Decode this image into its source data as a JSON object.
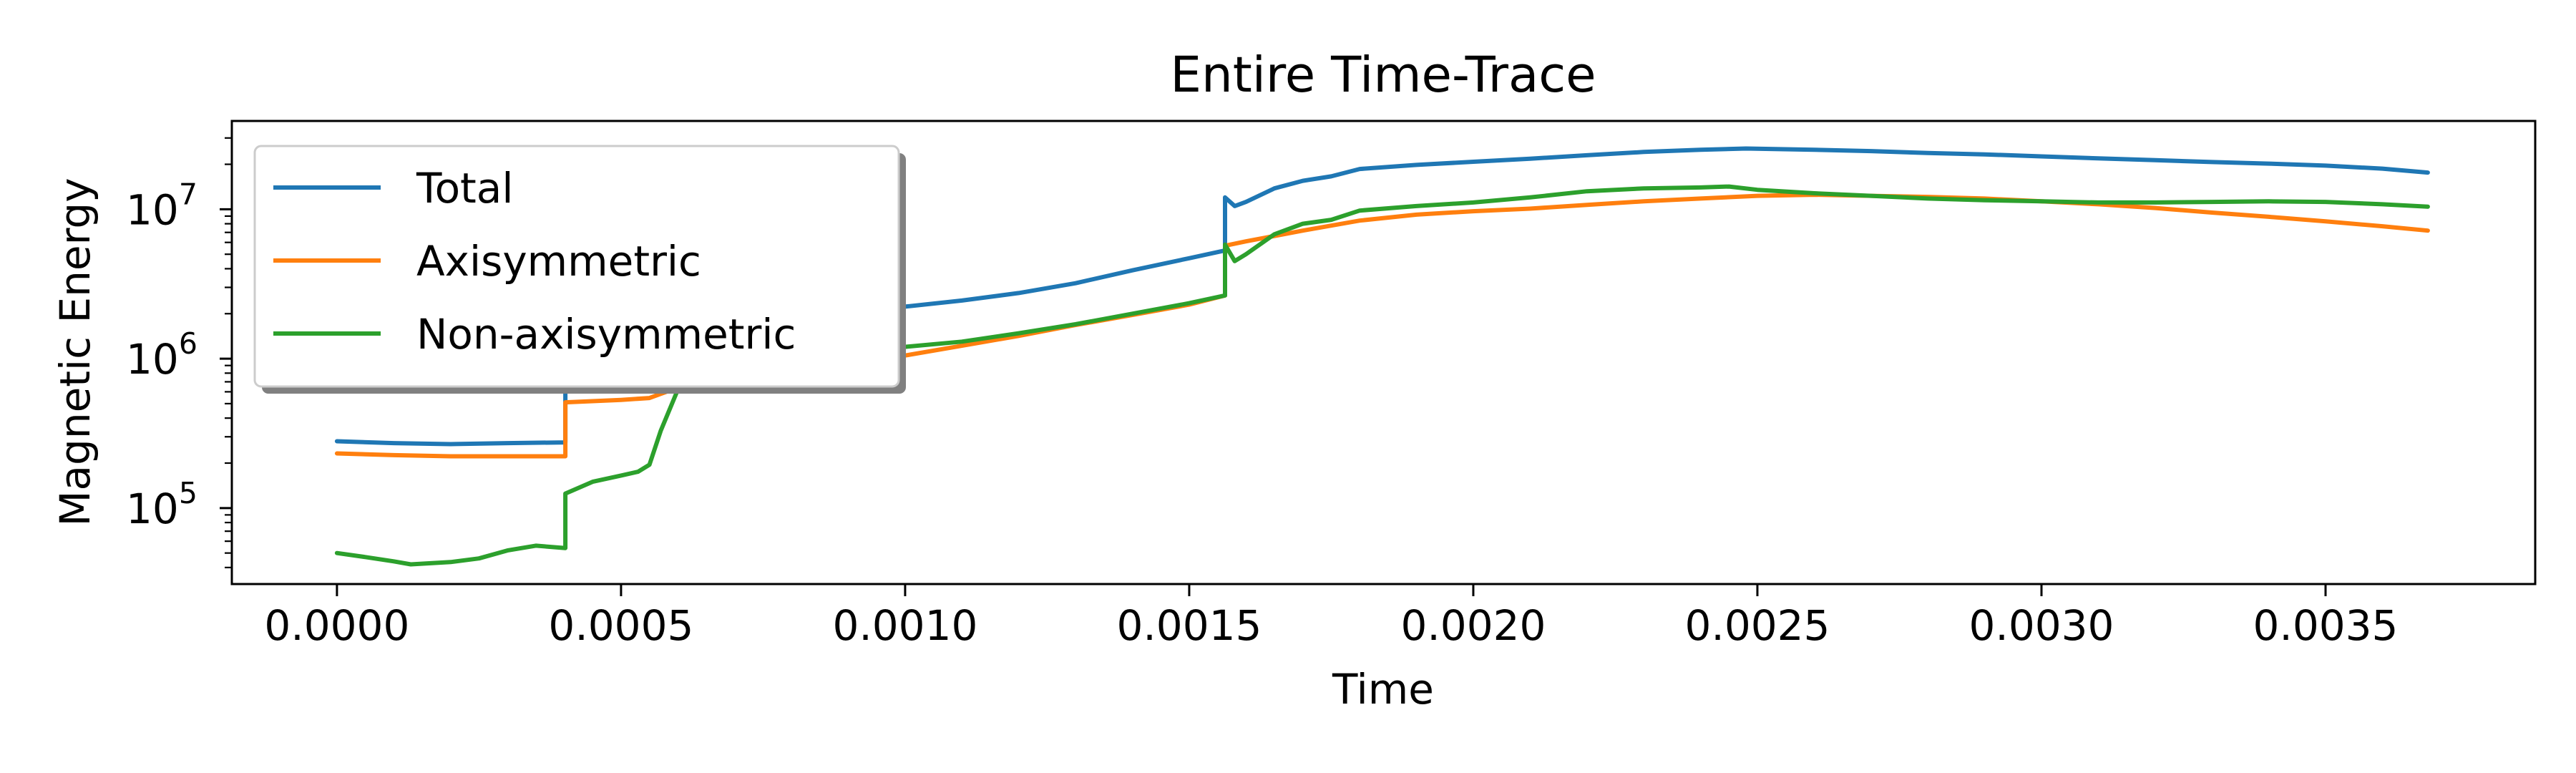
{
  "chart_data": {
    "type": "line",
    "title": "Entire Time-Trace",
    "xlabel": "Time",
    "ylabel": "Magnetic Energy",
    "x_ticks": [
      "0.0000",
      "0.0005",
      "0.0010",
      "0.0015",
      "0.0020",
      "0.0025",
      "0.0030",
      "0.0035"
    ],
    "y_ticks": [
      {
        "base": "10",
        "exp": "5"
      },
      {
        "base": "10",
        "exp": "6"
      },
      {
        "base": "10",
        "exp": "7"
      }
    ],
    "xlim": [
      -0.000185,
      0.003869
    ],
    "ylim": [
      31000,
      39000000
    ],
    "yscale": "log",
    "grid": false,
    "legend_position": "upper left",
    "series": [
      {
        "name": "Total",
        "color": "#1f77b4",
        "points": [
          [
            0.0,
            280000
          ],
          [
            0.0001,
            272000
          ],
          [
            0.0002,
            268000
          ],
          [
            0.0003,
            272000
          ],
          [
            0.000402,
            275000
          ],
          [
            0.000402,
            640000
          ],
          [
            0.0006,
            700000
          ],
          [
            0.0008,
            1000000
          ],
          [
            0.0009,
            1700000
          ],
          [
            0.001,
            2230000
          ],
          [
            0.0011,
            2450000
          ],
          [
            0.0012,
            2750000
          ],
          [
            0.0013,
            3200000
          ],
          [
            0.0014,
            3900000
          ],
          [
            0.0015,
            4700000
          ],
          [
            0.001563,
            5300000
          ],
          [
            0.001563,
            12000000
          ],
          [
            0.00158,
            10500000
          ],
          [
            0.0016,
            11200000
          ],
          [
            0.00165,
            13800000
          ],
          [
            0.0017,
            15500000
          ],
          [
            0.00175,
            16600000
          ],
          [
            0.0018,
            18600000
          ],
          [
            0.0019,
            19800000
          ],
          [
            0.002,
            20800000
          ],
          [
            0.0021,
            21800000
          ],
          [
            0.0022,
            23000000
          ],
          [
            0.0023,
            24200000
          ],
          [
            0.0024,
            25000000
          ],
          [
            0.00248,
            25500000
          ],
          [
            0.0026,
            25000000
          ],
          [
            0.0027,
            24500000
          ],
          [
            0.0028,
            23800000
          ],
          [
            0.0029,
            23300000
          ],
          [
            0.003,
            22600000
          ],
          [
            0.0031,
            21900000
          ],
          [
            0.0032,
            21300000
          ],
          [
            0.0033,
            20700000
          ],
          [
            0.0034,
            20200000
          ],
          [
            0.0035,
            19600000
          ],
          [
            0.0036,
            18700000
          ],
          [
            0.00368,
            17600000
          ]
        ]
      },
      {
        "name": "Axisymmetric",
        "color": "#ff7f0e",
        "points": [
          [
            0.0,
            232000
          ],
          [
            0.0001,
            226000
          ],
          [
            0.0002,
            222000
          ],
          [
            0.0003,
            222000
          ],
          [
            0.000402,
            222000
          ],
          [
            0.000402,
            510000
          ],
          [
            0.0005,
            530000
          ],
          [
            0.00055,
            545000
          ],
          [
            0.0006,
            640000
          ],
          [
            0.0007,
            690000
          ],
          [
            0.0008,
            780000
          ],
          [
            0.0009,
            900000
          ],
          [
            0.001,
            1050000
          ],
          [
            0.0011,
            1220000
          ],
          [
            0.0012,
            1420000
          ],
          [
            0.0013,
            1680000
          ],
          [
            0.0014,
            1960000
          ],
          [
            0.0015,
            2300000
          ],
          [
            0.001563,
            2650000
          ],
          [
            0.001563,
            5700000
          ],
          [
            0.0016,
            6100000
          ],
          [
            0.0017,
            7200000
          ],
          [
            0.0018,
            8400000
          ],
          [
            0.0019,
            9200000
          ],
          [
            0.002,
            9700000
          ],
          [
            0.0021,
            10100000
          ],
          [
            0.0022,
            10700000
          ],
          [
            0.0023,
            11300000
          ],
          [
            0.0024,
            11800000
          ],
          [
            0.0025,
            12300000
          ],
          [
            0.0026,
            12500000
          ],
          [
            0.0027,
            12300000
          ],
          [
            0.0028,
            12100000
          ],
          [
            0.0029,
            11800000
          ],
          [
            0.003,
            11300000
          ],
          [
            0.0031,
            10800000
          ],
          [
            0.0032,
            10200000
          ],
          [
            0.0033,
            9500000
          ],
          [
            0.0034,
            8900000
          ],
          [
            0.0035,
            8300000
          ],
          [
            0.0036,
            7700000
          ],
          [
            0.00368,
            7200000
          ]
        ]
      },
      {
        "name": "Non-axisymmetric",
        "color": "#2ca02c",
        "points": [
          [
            0.0,
            50000
          ],
          [
            5e-05,
            47000
          ],
          [
            0.0001,
            44000
          ],
          [
            0.00013,
            42000
          ],
          [
            0.0002,
            43500
          ],
          [
            0.00025,
            46000
          ],
          [
            0.0003,
            52000
          ],
          [
            0.00035,
            56000
          ],
          [
            0.000402,
            54000
          ],
          [
            0.000402,
            125000
          ],
          [
            0.00045,
            150000
          ],
          [
            0.0005,
            165000
          ],
          [
            0.00053,
            175000
          ],
          [
            0.00055,
            195000
          ],
          [
            0.00057,
            330000
          ],
          [
            0.0006,
            620000
          ],
          [
            0.00065,
            700000
          ],
          [
            0.0007,
            760000
          ],
          [
            0.0008,
            880000
          ],
          [
            0.0009,
            1000000
          ],
          [
            0.001,
            1200000
          ],
          [
            0.0011,
            1300000
          ],
          [
            0.0012,
            1480000
          ],
          [
            0.0013,
            1700000
          ],
          [
            0.0014,
            2000000
          ],
          [
            0.0015,
            2350000
          ],
          [
            0.001563,
            2650000
          ],
          [
            0.001563,
            5800000
          ],
          [
            0.00158,
            4500000
          ],
          [
            0.0016,
            5000000
          ],
          [
            0.00165,
            6800000
          ],
          [
            0.0017,
            8000000
          ],
          [
            0.00175,
            8500000
          ],
          [
            0.0018,
            9800000
          ],
          [
            0.0019,
            10500000
          ],
          [
            0.002,
            11100000
          ],
          [
            0.0021,
            12000000
          ],
          [
            0.0022,
            13200000
          ],
          [
            0.0023,
            13800000
          ],
          [
            0.0024,
            14000000
          ],
          [
            0.00245,
            14200000
          ],
          [
            0.0025,
            13500000
          ],
          [
            0.0026,
            12800000
          ],
          [
            0.0027,
            12300000
          ],
          [
            0.0028,
            11800000
          ],
          [
            0.0029,
            11500000
          ],
          [
            0.003,
            11300000
          ],
          [
            0.0031,
            11100000
          ],
          [
            0.0032,
            11100000
          ],
          [
            0.0033,
            11200000
          ],
          [
            0.0034,
            11300000
          ],
          [
            0.0035,
            11200000
          ],
          [
            0.0036,
            10800000
          ],
          [
            0.00368,
            10400000
          ]
        ]
      }
    ]
  }
}
